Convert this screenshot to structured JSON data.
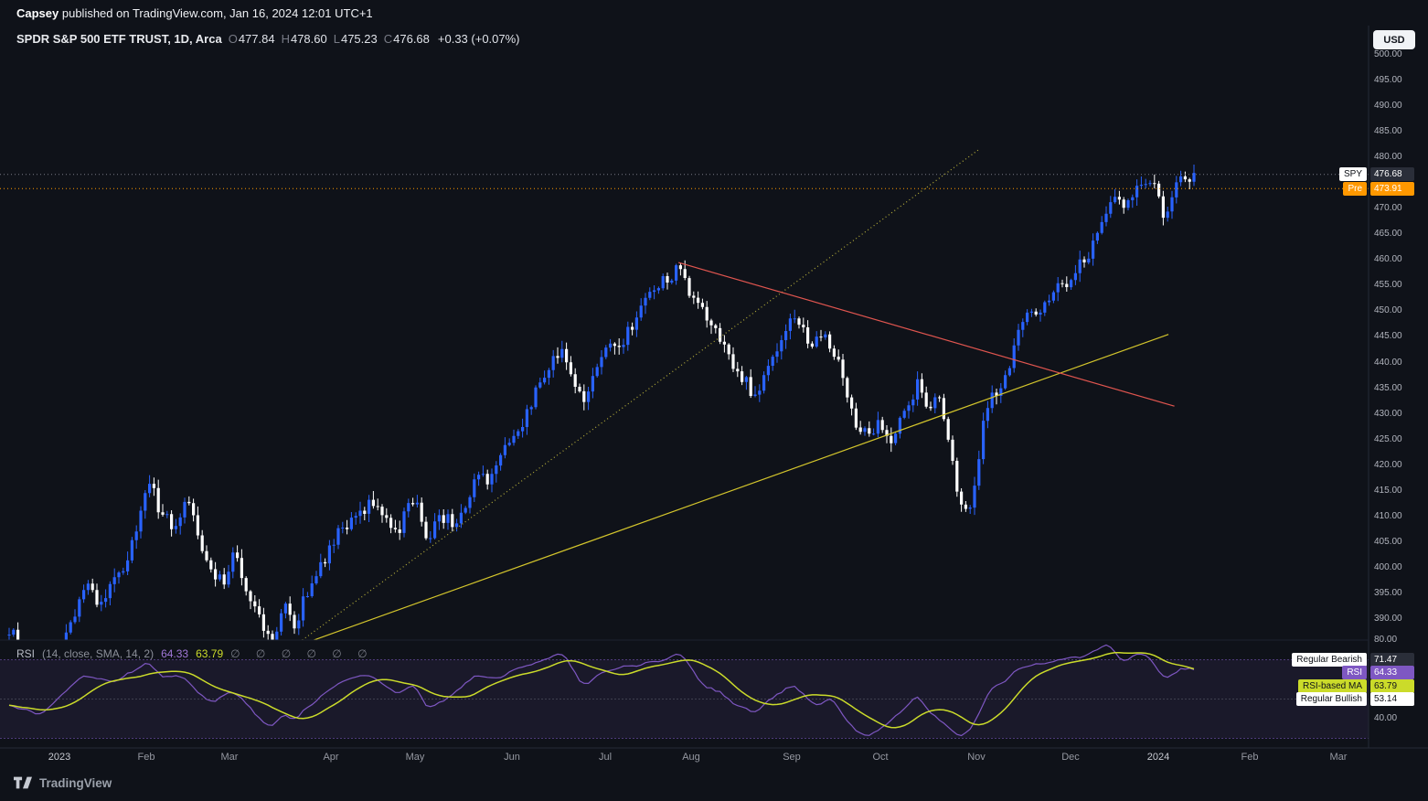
{
  "header": {
    "author": "Capsey",
    "published_suffix": " published on TradingView.com, Jan 16, 2024 12:01 UTC+1"
  },
  "symbol_row": {
    "title": "SPDR S&P 500 ETF TRUST, 1D, Arca",
    "o_label": "O",
    "o_value": "477.84",
    "h_label": "H",
    "h_value": "478.60",
    "l_label": "L",
    "l_value": "475.23",
    "c_label": "C",
    "c_value": "476.68",
    "change": "+0.33 (+0.07%)"
  },
  "price_scale": {
    "currency_button": "USD",
    "ticks": [
      500,
      495,
      490,
      485,
      480,
      470,
      465,
      460,
      455,
      450,
      445,
      440,
      435,
      430,
      425,
      420,
      415,
      410,
      405,
      400,
      395,
      390
    ],
    "last_label_tag": "SPY",
    "last_label_value": "476.68",
    "premarket_tag": "Pre",
    "premarket_value": "473.91"
  },
  "time_axis": {
    "labels": [
      "2023",
      "Feb",
      "Mar",
      "Apr",
      "May",
      "Jun",
      "Jul",
      "Aug",
      "Sep",
      "Oct",
      "Nov",
      "Dec",
      "2024",
      "Feb",
      "Mar"
    ]
  },
  "rsi_pane": {
    "name": "RSI",
    "params": "(14, close, SMA, 14, 2)",
    "value": "64.33",
    "ma_value": "63.79",
    "disabled_inputs": "∅ ∅ ∅ ∅ ∅ ∅",
    "tick_high": "80.00",
    "tick_low": "40.00",
    "labels": [
      {
        "tag": "Regular Bearish",
        "value": "71.47"
      },
      {
        "tag": "RSI",
        "value": "64.33"
      },
      {
        "tag": "RSI-based MA",
        "value": "63.79"
      },
      {
        "tag": "Regular Bullish",
        "value": "53.14"
      }
    ]
  },
  "footer": {
    "brand": "TradingView",
    "logo_icon": "tradingview-logo-icon"
  },
  "chart_data": {
    "type": "candlestick",
    "title": "SPDR S&P 500 ETF TRUST, 1D, Arca",
    "symbol": "SPY",
    "timeframe": "1D",
    "exchange": "Arca",
    "currency": "USD",
    "x_range": [
      "Dec 2022",
      "Mar 2024"
    ],
    "y_axis": {
      "visible_min": 385,
      "visible_max": 501,
      "tick_step": 5
    },
    "last_bar": {
      "open": 477.84,
      "high": 478.6,
      "low": 475.23,
      "close": 476.68,
      "change": 0.33,
      "change_pct": 0.07
    },
    "premarket_price": 473.91,
    "up_color": "#2962ff",
    "down_color": "#ffffff",
    "price_path": [
      [
        0,
        388
      ],
      [
        0.012,
        384
      ],
      [
        0.023,
        382
      ],
      [
        0.042,
        384
      ],
      [
        0.054,
        390
      ],
      [
        0.065,
        397
      ],
      [
        0.077,
        392
      ],
      [
        0.089,
        398
      ],
      [
        0.1,
        401
      ],
      [
        0.112,
        412
      ],
      [
        0.119,
        417
      ],
      [
        0.127,
        411
      ],
      [
        0.139,
        408
      ],
      [
        0.15,
        414
      ],
      [
        0.158,
        407
      ],
      [
        0.169,
        399
      ],
      [
        0.181,
        397
      ],
      [
        0.189,
        404
      ],
      [
        0.2,
        396
      ],
      [
        0.212,
        390
      ],
      [
        0.22,
        385
      ],
      [
        0.227,
        389
      ],
      [
        0.235,
        393
      ],
      [
        0.239,
        387
      ],
      [
        0.25,
        395
      ],
      [
        0.262,
        400
      ],
      [
        0.271,
        404
      ],
      [
        0.281,
        408
      ],
      [
        0.293,
        409
      ],
      [
        0.304,
        413
      ],
      [
        0.316,
        411
      ],
      [
        0.327,
        406
      ],
      [
        0.335,
        412
      ],
      [
        0.343,
        413
      ],
      [
        0.351,
        405
      ],
      [
        0.362,
        410
      ],
      [
        0.374,
        409
      ],
      [
        0.385,
        411
      ],
      [
        0.393,
        418
      ],
      [
        0.404,
        417
      ],
      [
        0.412,
        420
      ],
      [
        0.424,
        426
      ],
      [
        0.435,
        429
      ],
      [
        0.447,
        436
      ],
      [
        0.458,
        440
      ],
      [
        0.466,
        443
      ],
      [
        0.478,
        435
      ],
      [
        0.485,
        433
      ],
      [
        0.493,
        437
      ],
      [
        0.502,
        443
      ],
      [
        0.512,
        442
      ],
      [
        0.524,
        447
      ],
      [
        0.535,
        452
      ],
      [
        0.547,
        455
      ],
      [
        0.559,
        457
      ],
      [
        0.566,
        459
      ],
      [
        0.572,
        453
      ],
      [
        0.582,
        451
      ],
      [
        0.589,
        448
      ],
      [
        0.597,
        446
      ],
      [
        0.605,
        442
      ],
      [
        0.612,
        438
      ],
      [
        0.62,
        437
      ],
      [
        0.628,
        433
      ],
      [
        0.636,
        437
      ],
      [
        0.643,
        440
      ],
      [
        0.651,
        444
      ],
      [
        0.659,
        450
      ],
      [
        0.67,
        446
      ],
      [
        0.678,
        443
      ],
      [
        0.686,
        447
      ],
      [
        0.693,
        443
      ],
      [
        0.701,
        440
      ],
      [
        0.709,
        431
      ],
      [
        0.716,
        427
      ],
      [
        0.724,
        426
      ],
      [
        0.732,
        428
      ],
      [
        0.743,
        425
      ],
      [
        0.751,
        429
      ],
      [
        0.759,
        432
      ],
      [
        0.767,
        437
      ],
      [
        0.774,
        431
      ],
      [
        0.782,
        435
      ],
      [
        0.79,
        426
      ],
      [
        0.797,
        418
      ],
      [
        0.803,
        411
      ],
      [
        0.809,
        412
      ],
      [
        0.815,
        418
      ],
      [
        0.821,
        428
      ],
      [
        0.828,
        435
      ],
      [
        0.836,
        434
      ],
      [
        0.844,
        440
      ],
      [
        0.851,
        446
      ],
      [
        0.859,
        450
      ],
      [
        0.871,
        451
      ],
      [
        0.882,
        455
      ],
      [
        0.894,
        456
      ],
      [
        0.901,
        460
      ],
      [
        0.909,
        461
      ],
      [
        0.917,
        466
      ],
      [
        0.925,
        470
      ],
      [
        0.932,
        472
      ],
      [
        0.94,
        469
      ],
      [
        0.948,
        474
      ],
      [
        0.955,
        476
      ],
      [
        0.963,
        475
      ],
      [
        0.968,
        472
      ],
      [
        0.975,
        468
      ],
      [
        0.982,
        474
      ],
      [
        0.99,
        476
      ],
      [
        0.996,
        475
      ],
      [
        1,
        477
      ]
    ],
    "indicator": {
      "name": "RSI",
      "params": [
        14,
        "close",
        "SMA",
        14,
        2
      ],
      "value": 64.33,
      "ma_value": 63.79,
      "regular_bearish": 71.47,
      "regular_bullish": 53.14,
      "bands": [
        70,
        50,
        30
      ],
      "axis_ticks": [
        80,
        40
      ],
      "line_color": "#7e57c2",
      "ma_color": "#cbdb2a",
      "rsi_path": [
        [
          0,
          48
        ],
        [
          0.023,
          42
        ],
        [
          0.042,
          50
        ],
        [
          0.065,
          62
        ],
        [
          0.089,
          58
        ],
        [
          0.116,
          68
        ],
        [
          0.127,
          62
        ],
        [
          0.15,
          60
        ],
        [
          0.169,
          48
        ],
        [
          0.189,
          55
        ],
        [
          0.212,
          40
        ],
        [
          0.22,
          33
        ],
        [
          0.235,
          45
        ],
        [
          0.239,
          38
        ],
        [
          0.262,
          52
        ],
        [
          0.281,
          58
        ],
        [
          0.304,
          62
        ],
        [
          0.327,
          52
        ],
        [
          0.343,
          58
        ],
        [
          0.351,
          45
        ],
        [
          0.374,
          52
        ],
        [
          0.393,
          62
        ],
        [
          0.412,
          60
        ],
        [
          0.435,
          68
        ],
        [
          0.458,
          71
        ],
        [
          0.466,
          73
        ],
        [
          0.485,
          56
        ],
        [
          0.502,
          64
        ],
        [
          0.535,
          69
        ],
        [
          0.559,
          71
        ],
        [
          0.566,
          73
        ],
        [
          0.582,
          58
        ],
        [
          0.597,
          54
        ],
        [
          0.612,
          48
        ],
        [
          0.628,
          42
        ],
        [
          0.643,
          50
        ],
        [
          0.659,
          58
        ],
        [
          0.678,
          47
        ],
        [
          0.693,
          51
        ],
        [
          0.709,
          37
        ],
        [
          0.724,
          31
        ],
        [
          0.734,
          35
        ],
        [
          0.751,
          42
        ],
        [
          0.767,
          53
        ],
        [
          0.774,
          43
        ],
        [
          0.79,
          37
        ],
        [
          0.803,
          30
        ],
        [
          0.815,
          40
        ],
        [
          0.828,
          56
        ],
        [
          0.844,
          60
        ],
        [
          0.851,
          66
        ],
        [
          0.871,
          68
        ],
        [
          0.882,
          69
        ],
        [
          0.894,
          70
        ],
        [
          0.909,
          72
        ],
        [
          0.925,
          79
        ],
        [
          0.94,
          69
        ],
        [
          0.948,
          74
        ],
        [
          0.963,
          70
        ],
        [
          0.975,
          60
        ],
        [
          0.99,
          66
        ],
        [
          1,
          64.3
        ]
      ]
    },
    "drawings": {
      "support_trendline": {
        "x1": 0.246,
        "price1": 385.0,
        "x2": 0.977,
        "price2": 445.5,
        "color": "#d3c52c",
        "style": "solid"
      },
      "dotted_trendline": {
        "x1": 0.247,
        "price1": 385.9,
        "x2": 0.817,
        "price2": 481.5,
        "color": "#b5ad3a",
        "style": "dotted"
      },
      "resistance_trendline": {
        "x1": 0.564,
        "price1": 459.5,
        "x2": 0.982,
        "price2": 431.5,
        "color": "#e0554f",
        "style": "solid"
      },
      "last_price_line": {
        "price": 476.68,
        "color": "#787b86",
        "style": "dotted"
      },
      "premarket_line": {
        "price": 473.91,
        "color": "#ff9800",
        "style": "dotted"
      }
    }
  }
}
